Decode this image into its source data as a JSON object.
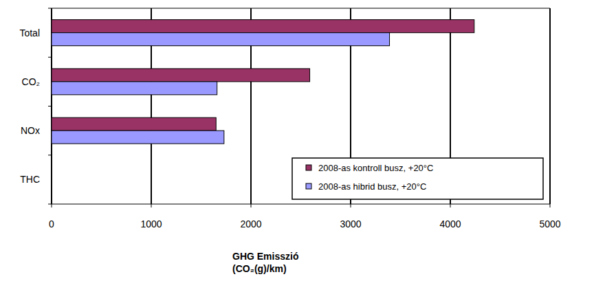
{
  "chart_data": {
    "type": "bar",
    "orientation": "horizontal",
    "categories": [
      "Total",
      "CO₂",
      "NOx",
      "THC"
    ],
    "series": [
      {
        "name": "2008-as kontroll busz, +20°C",
        "color": "#993366",
        "values": [
          4240,
          2590,
          1650,
          0
        ]
      },
      {
        "name": "2008-as hibrid busz, +20°C",
        "color": "#9999ff",
        "values": [
          3390,
          1660,
          1730,
          0
        ]
      }
    ],
    "xlabel": [
      "GHG Emisszió",
      "(CO₂(g)/km)"
    ],
    "xlim": [
      0,
      5000
    ],
    "xticks": [
      0,
      1000,
      2000,
      3000,
      4000,
      5000
    ],
    "grid": true,
    "legend": "lower right"
  }
}
